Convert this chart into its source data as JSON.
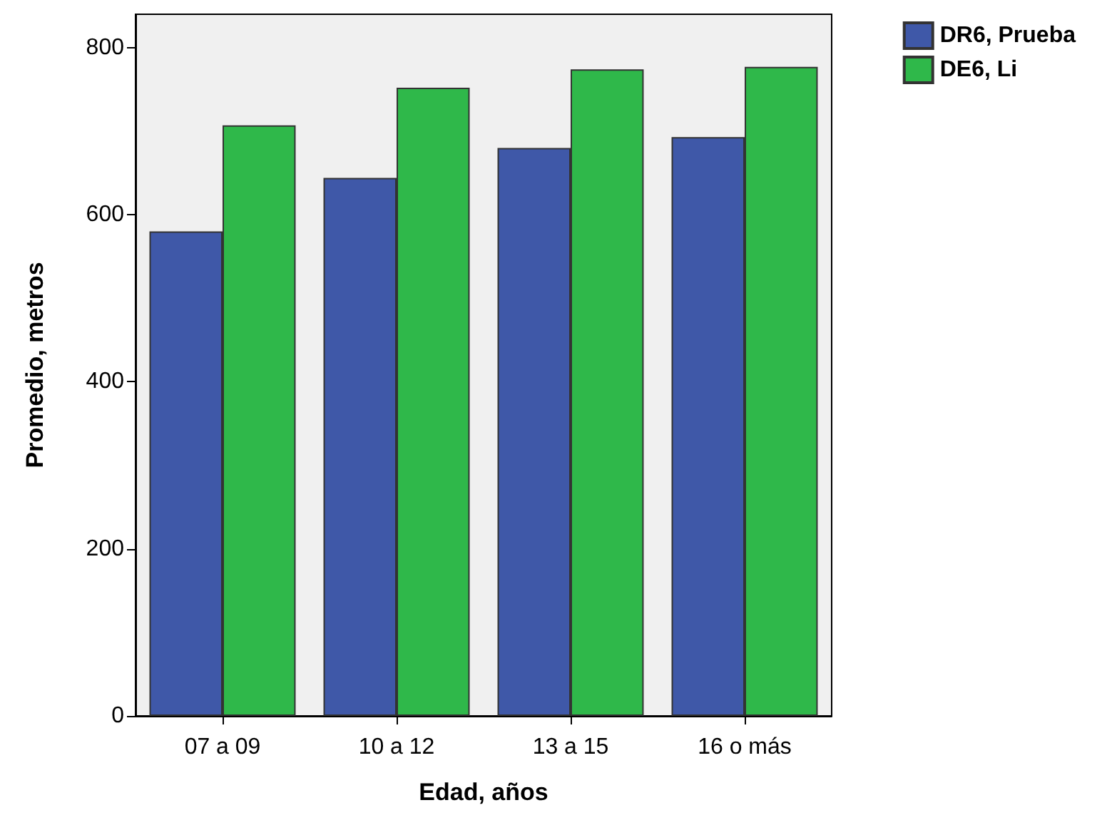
{
  "chart_data": {
    "type": "bar",
    "xlabel": "Edad, años",
    "ylabel": "Promedio, metros",
    "categories": [
      "07 a 09",
      "10 a 12",
      "13 a 15",
      "16 o más"
    ],
    "series": [
      {
        "name": "DR6, Prueba",
        "color": "#3f58a8",
        "values": [
          580,
          644,
          680,
          693
        ]
      },
      {
        "name": "DE6, Li",
        "color": "#2fb84a",
        "values": [
          707,
          752,
          774,
          777
        ]
      }
    ],
    "ylim": [
      0,
      840
    ],
    "yticks": [
      0,
      200,
      400,
      600,
      800
    ],
    "grid": false,
    "legend": "top right"
  }
}
